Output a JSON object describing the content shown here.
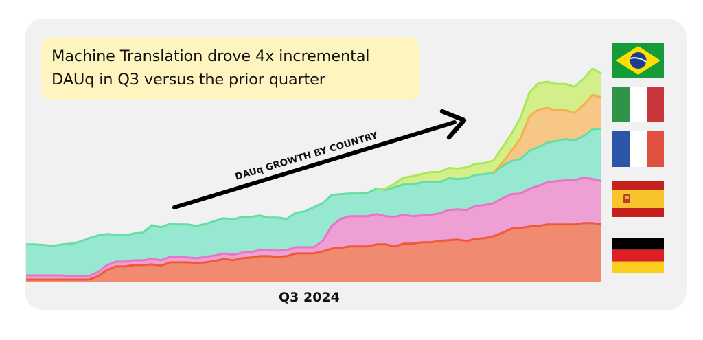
{
  "headline": {
    "line1": "Machine Translation drove 4x incremental",
    "line2": "DAUq in Q3 versus the prior quarter"
  },
  "annotation": {
    "text": "DAUq GROWTH BY COUNTRY"
  },
  "chart_data": {
    "type": "area",
    "title": "Machine Translation drove 4x incremental DAUq in Q3 versus the prior quarter",
    "subtitle": "DAUq GROWTH BY COUNTRY",
    "xlabel": "Q3 2024",
    "ylabel": "",
    "stacked": true,
    "grid": false,
    "legend": "right (flags)",
    "colors": {
      "Germany": "#f08a70",
      "Spain": "#ee9fd3",
      "France": "#96e8d0",
      "Italy": "#f7c785",
      "Brazil": "#d3ef8a"
    },
    "line_colors": {
      "Germany": "#ee5a36",
      "Spain": "#ea73c8",
      "France": "#66dda4",
      "Italy": "#f4b04a",
      "Brazil": "#a9e85a"
    },
    "ylim": [
      0,
      340
    ],
    "series": [
      {
        "name": "Germany",
        "values": [
          4,
          4,
          4,
          4,
          4,
          4,
          4,
          4,
          9,
          18,
          23,
          23,
          25,
          25,
          26,
          24,
          29,
          29,
          29,
          28,
          29,
          31,
          34,
          32,
          35,
          36,
          38,
          38,
          37,
          38,
          42,
          42,
          42,
          45,
          49,
          50,
          52,
          52,
          52,
          55,
          55,
          52,
          56,
          56,
          58,
          58,
          60,
          61,
          62,
          60,
          63,
          64,
          67,
          72,
          78,
          79,
          81,
          82,
          84,
          84,
          84,
          84,
          86,
          86,
          84
        ]
      },
      {
        "name": "Spain",
        "values": [
          6,
          6,
          6,
          6,
          6,
          5,
          5,
          5,
          6,
          7,
          7,
          7,
          7,
          7,
          8,
          8,
          8,
          8,
          7,
          7,
          8,
          8,
          8,
          8,
          8,
          8,
          9,
          9,
          9,
          9,
          9,
          9,
          9,
          15,
          33,
          42,
          44,
          44,
          44,
          44,
          41,
          43,
          42,
          40,
          39,
          40,
          40,
          44,
          44,
          45,
          48,
          48,
          48,
          50,
          50,
          50,
          55,
          58,
          61,
          63,
          64,
          64,
          66,
          64,
          63
        ]
      },
      {
        "name": "France",
        "values": [
          45,
          45,
          44,
          43,
          45,
          47,
          50,
          55,
          53,
          45,
          39,
          38,
          39,
          40,
          49,
          48,
          48,
          47,
          48,
          47,
          48,
          50,
          51,
          51,
          52,
          51,
          50,
          47,
          48,
          45,
          50,
          52,
          58,
          55,
          45,
          36,
          33,
          33,
          34,
          37,
          38,
          43,
          44,
          46,
          48,
          48,
          45,
          46,
          44,
          46,
          45,
          45,
          44,
          47,
          48,
          50,
          55,
          56,
          58,
          58,
          60,
          58,
          60,
          72,
          76
        ]
      },
      {
        "name": "Italy",
        "values": [
          0,
          0,
          0,
          0,
          0,
          0,
          0,
          0,
          0,
          0,
          0,
          0,
          0,
          0,
          0,
          0,
          0,
          0,
          0,
          0,
          0,
          0,
          0,
          0,
          0,
          0,
          0,
          0,
          0,
          0,
          0,
          0,
          0,
          0,
          0,
          0,
          0,
          0,
          0,
          0,
          0,
          0,
          0,
          0,
          0,
          0,
          0,
          0,
          0,
          0,
          0,
          0,
          0,
          5,
          15,
          30,
          50,
          55,
          50,
          45,
          42,
          40,
          45,
          50,
          45
        ]
      },
      {
        "name": "Brazil",
        "values": [
          0,
          0,
          0,
          0,
          0,
          0,
          0,
          0,
          0,
          0,
          0,
          0,
          0,
          0,
          0,
          0,
          0,
          0,
          0,
          0,
          0,
          0,
          0,
          0,
          0,
          0,
          0,
          0,
          0,
          0,
          0,
          0,
          0,
          0,
          0,
          0,
          0,
          0,
          0,
          0,
          2,
          5,
          10,
          12,
          12,
          14,
          15,
          15,
          15,
          16,
          16,
          16,
          18,
          22,
          25,
          30,
          35,
          38,
          38,
          38,
          38,
          38,
          38,
          38,
          35
        ]
      }
    ]
  },
  "legend_flags": [
    {
      "country": "Brazil"
    },
    {
      "country": "Italy"
    },
    {
      "country": "France"
    },
    {
      "country": "Spain"
    },
    {
      "country": "Germany"
    }
  ]
}
